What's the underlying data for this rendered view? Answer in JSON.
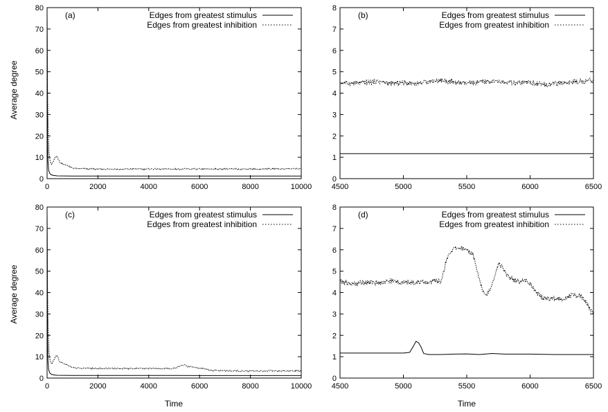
{
  "figure": {
    "xlabel": "Time",
    "ylabel": "Average degree"
  },
  "chart_data": [
    {
      "type": "line",
      "panel": "(a)",
      "xlabel": "",
      "ylabel": "Average degree",
      "xlim": [
        0,
        10000
      ],
      "ylim": [
        0,
        80
      ],
      "xticks": [
        0,
        2000,
        4000,
        6000,
        8000,
        10000
      ],
      "yticks": [
        0,
        10,
        20,
        30,
        40,
        50,
        60,
        70,
        80
      ],
      "legend": "top-right",
      "series": [
        {
          "name": "Edges from greatest stimulus",
          "style": "solid",
          "x": [
            0,
            5,
            12,
            20,
            35,
            60,
            100,
            160,
            250,
            400,
            1000,
            3000,
            6000,
            10000
          ],
          "y": [
            78,
            60,
            35,
            18,
            8,
            4,
            2.5,
            1.8,
            1.5,
            1.3,
            1.2,
            1.2,
            1.2,
            1.2
          ]
        },
        {
          "name": "Edges from greatest inhibition",
          "style": "dotted",
          "x": [
            0,
            10,
            25,
            50,
            80,
            120,
            170,
            230,
            300,
            350,
            400,
            450,
            500,
            600,
            700,
            800,
            900,
            1000,
            1100,
            1300,
            2000,
            4000,
            6000,
            8000,
            10000
          ],
          "y": [
            78,
            55,
            35,
            20,
            12,
            8,
            6.5,
            7.5,
            9.5,
            10.2,
            10.5,
            9,
            7.5,
            7,
            6.5,
            6.2,
            5.5,
            5,
            4.7,
            4.6,
            4.5,
            4.5,
            4.5,
            4.5,
            4.6
          ]
        }
      ]
    },
    {
      "type": "line",
      "panel": "(b)",
      "xlabel": "",
      "ylabel": "",
      "xlim": [
        4500,
        6500
      ],
      "ylim": [
        0,
        8
      ],
      "xticks": [
        4500,
        5000,
        5500,
        6000,
        6500
      ],
      "yticks": [
        0,
        1,
        2,
        3,
        4,
        5,
        6,
        7,
        8
      ],
      "legend": "top-right",
      "series": [
        {
          "name": "Edges from greatest stimulus",
          "style": "solid",
          "x": [
            4500,
            6500
          ],
          "y": [
            1.17,
            1.17
          ]
        },
        {
          "name": "Edges from greatest inhibition",
          "style": "dotted",
          "x": [
            4500,
            4600,
            4700,
            4800,
            4900,
            5000,
            5100,
            5200,
            5300,
            5400,
            5500,
            5600,
            5700,
            5800,
            5900,
            6000,
            6100,
            6200,
            6300,
            6400,
            6500
          ],
          "y": [
            4.5,
            4.45,
            4.5,
            4.55,
            4.45,
            4.5,
            4.45,
            4.55,
            4.6,
            4.5,
            4.45,
            4.5,
            4.55,
            4.5,
            4.45,
            4.5,
            4.4,
            4.45,
            4.5,
            4.55,
            4.6
          ]
        }
      ]
    },
    {
      "type": "line",
      "panel": "(c)",
      "xlabel": "Time",
      "ylabel": "Average degree",
      "xlim": [
        0,
        10000
      ],
      "ylim": [
        0,
        80
      ],
      "xticks": [
        0,
        2000,
        4000,
        6000,
        8000,
        10000
      ],
      "yticks": [
        0,
        10,
        20,
        30,
        40,
        50,
        60,
        70,
        80
      ],
      "legend": "top-right",
      "series": [
        {
          "name": "Edges from greatest stimulus",
          "style": "solid",
          "x": [
            0,
            5,
            12,
            20,
            35,
            60,
            100,
            160,
            250,
            400,
            1000,
            3000,
            5000,
            6000,
            10000
          ],
          "y": [
            78,
            60,
            35,
            18,
            8,
            4,
            2.5,
            1.8,
            1.5,
            1.3,
            1.2,
            1.2,
            1.2,
            1.15,
            1.15
          ]
        },
        {
          "name": "Edges from greatest inhibition",
          "style": "dotted",
          "x": [
            0,
            10,
            25,
            50,
            80,
            120,
            170,
            230,
            300,
            350,
            400,
            450,
            500,
            600,
            700,
            800,
            900,
            1000,
            1100,
            1300,
            2000,
            3000,
            4000,
            5000,
            5200,
            5400,
            5500,
            5600,
            5800,
            6000,
            6200,
            6400,
            7000,
            8000,
            10000
          ],
          "y": [
            78,
            55,
            35,
            20,
            12,
            8,
            6.5,
            7.5,
            9.5,
            10.2,
            10.5,
            9,
            7.5,
            7,
            6.5,
            6.2,
            5.5,
            5,
            4.7,
            4.6,
            4.5,
            4.5,
            4.5,
            4.5,
            5.5,
            6.2,
            5.5,
            5.3,
            4.8,
            4.6,
            4.2,
            3.6,
            3.4,
            3.3,
            3.4
          ]
        }
      ]
    },
    {
      "type": "line",
      "panel": "(d)",
      "xlabel": "Time",
      "ylabel": "",
      "xlim": [
        4500,
        6500
      ],
      "ylim": [
        0,
        8
      ],
      "xticks": [
        4500,
        5000,
        5500,
        6000,
        6500
      ],
      "yticks": [
        0,
        1,
        2,
        3,
        4,
        5,
        6,
        7,
        8
      ],
      "legend": "top-right",
      "series": [
        {
          "name": "Edges from greatest stimulus",
          "style": "solid",
          "x": [
            4500,
            5000,
            5050,
            5080,
            5100,
            5120,
            5140,
            5160,
            5200,
            5300,
            5400,
            5500,
            5600,
            5700,
            5800,
            6000,
            6200,
            6500
          ],
          "y": [
            1.17,
            1.17,
            1.2,
            1.5,
            1.72,
            1.65,
            1.45,
            1.15,
            1.1,
            1.1,
            1.12,
            1.13,
            1.1,
            1.15,
            1.12,
            1.12,
            1.1,
            1.1
          ]
        },
        {
          "name": "Edges from greatest inhibition",
          "style": "dotted",
          "x": [
            4500,
            4600,
            4700,
            4800,
            4900,
            5000,
            5100,
            5200,
            5250,
            5300,
            5330,
            5370,
            5400,
            5450,
            5500,
            5550,
            5580,
            5620,
            5650,
            5680,
            5720,
            5750,
            5780,
            5820,
            5870,
            5920,
            5960,
            6000,
            6050,
            6100,
            6150,
            6200,
            6250,
            6300,
            6350,
            6400,
            6450,
            6480,
            6500
          ],
          "y": [
            4.5,
            4.4,
            4.5,
            4.45,
            4.55,
            4.45,
            4.5,
            4.45,
            4.6,
            4.5,
            5.3,
            5.9,
            6.05,
            6.1,
            6.0,
            5.8,
            5.1,
            4.2,
            3.85,
            4.1,
            4.8,
            5.3,
            5.2,
            4.8,
            4.6,
            4.5,
            4.6,
            4.4,
            4.0,
            3.75,
            3.7,
            3.75,
            3.7,
            3.8,
            3.9,
            3.85,
            3.5,
            3.1,
            3.05
          ]
        }
      ]
    }
  ]
}
